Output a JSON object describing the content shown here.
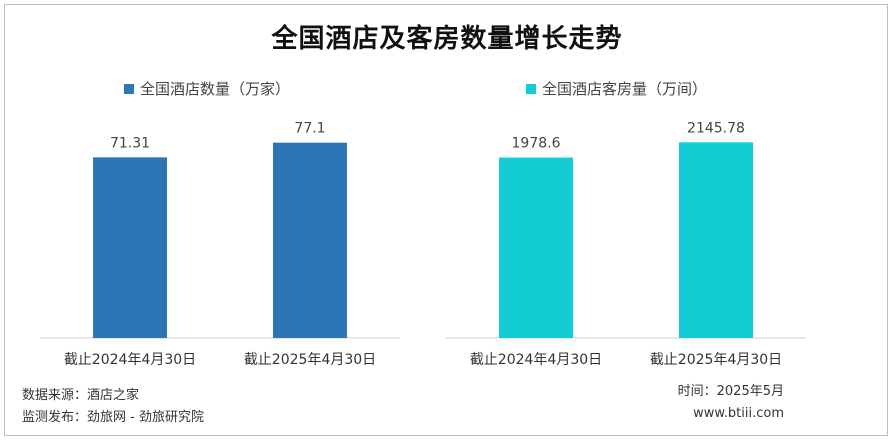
{
  "title": "全国酒店及客房数量增长走势",
  "chart_data": [
    {
      "type": "bar",
      "legend": "全国酒店数量（万家）",
      "categories": [
        "截止2024年4月30日",
        "截止2025年4月30日"
      ],
      "series": [
        {
          "name": "全国酒店数量（万家）",
          "values": [
            71.31,
            77.1
          ]
        }
      ],
      "data_labels": [
        "71.31",
        "77.1"
      ],
      "color": "#2e75b6",
      "ylim": [
        0,
        90
      ],
      "grid": false
    },
    {
      "type": "bar",
      "legend": "全国酒店客房量（万间）",
      "categories": [
        "截止2024年4月30日",
        "截止2025年4月30日"
      ],
      "series": [
        {
          "name": "全国酒店客房量（万间）",
          "values": [
            1978.6,
            2145.78
          ]
        }
      ],
      "data_labels": [
        "1978.6",
        "2145.78"
      ],
      "color": "#12cdd4",
      "ylim": [
        0,
        2500
      ],
      "grid": false
    }
  ],
  "footer": {
    "source": "数据来源：酒店之家",
    "publisher": "监测发布：劲旅网 - 劲旅研究院",
    "time": "时间：2025年5月",
    "site": "www.btiii.com"
  }
}
